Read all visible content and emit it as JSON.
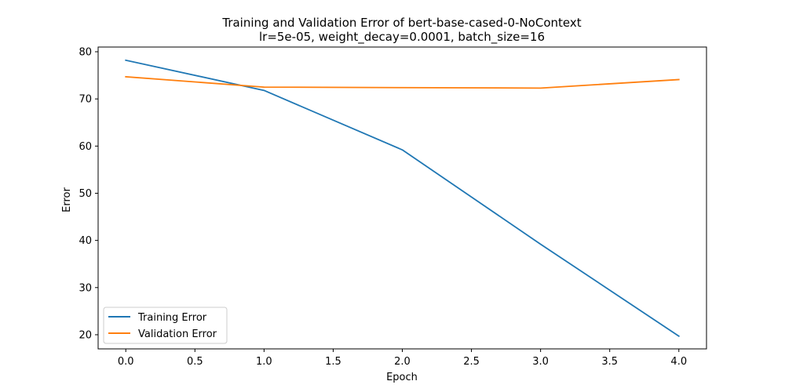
{
  "chart_data": {
    "type": "line",
    "title": "Training and Validation Error of bert-base-cased-0-NoContext",
    "subtitle": "lr=5e-05, weight_decay=0.0001, batch_size=16",
    "xlabel": "Epoch",
    "ylabel": "Error",
    "x": [
      0,
      1,
      2,
      3,
      4
    ],
    "xlim": [
      -0.2,
      4.2
    ],
    "ylim": [
      17,
      81
    ],
    "xticks": [
      0.0,
      0.5,
      1.0,
      1.5,
      2.0,
      2.5,
      3.0,
      3.5,
      4.0
    ],
    "xtick_labels": [
      "0.0",
      "0.5",
      "1.0",
      "1.5",
      "2.0",
      "2.5",
      "3.0",
      "3.5",
      "4.0"
    ],
    "yticks": [
      20,
      30,
      40,
      50,
      60,
      70,
      80
    ],
    "ytick_labels": [
      "20",
      "30",
      "40",
      "50",
      "60",
      "70",
      "80"
    ],
    "grid": false,
    "legend_position": "bottom-left",
    "series": [
      {
        "name": "Training Error",
        "color": "#1f77b4",
        "values": [
          78.2,
          71.8,
          59.2,
          39.2,
          19.7
        ]
      },
      {
        "name": "Validation Error",
        "color": "#ff7f0e",
        "values": [
          74.7,
          72.5,
          72.4,
          72.3,
          74.1
        ]
      }
    ]
  }
}
